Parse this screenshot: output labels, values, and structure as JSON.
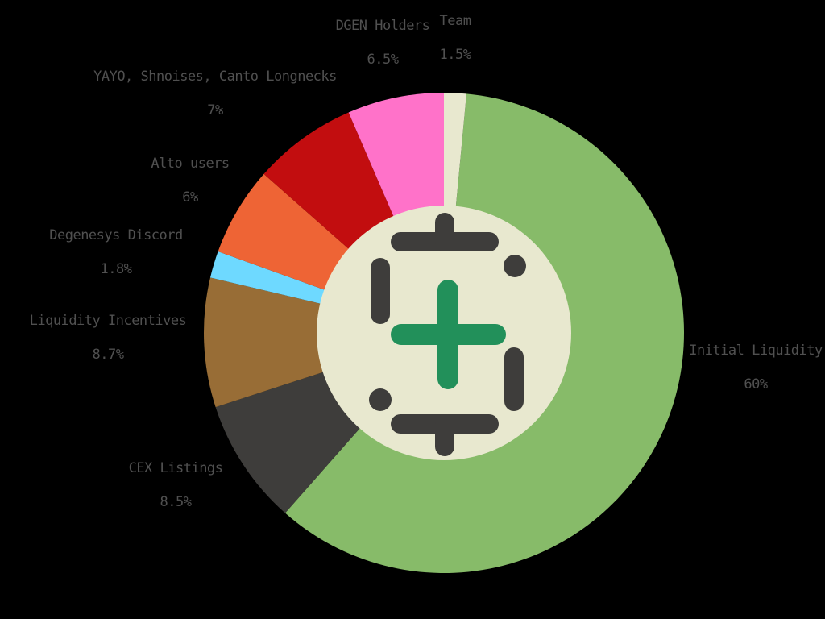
{
  "chart_data": {
    "type": "pie",
    "slices": [
      {
        "label": "Initial Liquidity",
        "value": 60,
        "value_label": "60%",
        "color": "#87BB69"
      },
      {
        "label": "CEX Listings",
        "value": 8.5,
        "value_label": "8.5%",
        "color": "#3E3D3B"
      },
      {
        "label": "Liquidity Incentives",
        "value": 8.7,
        "value_label": "8.7%",
        "color": "#986D36"
      },
      {
        "label": "Degenesys Discord",
        "value": 1.8,
        "value_label": "1.8%",
        "color": "#6ED9FF"
      },
      {
        "label": "Alto users",
        "value": 6,
        "value_label": "6%",
        "color": "#EE6435"
      },
      {
        "label": "YAYO, Shnoises, Canto Longnecks",
        "value": 7,
        "value_label": "7%",
        "color": "#C20D0F"
      },
      {
        "label": "DGEN Holders",
        "value": 6.5,
        "value_label": "6.5%",
        "color": "#FF72C9"
      },
      {
        "label": "Team",
        "value": 1.5,
        "value_label": "1.5%",
        "color": "#E8E8CF"
      }
    ],
    "title": "",
    "legend": "none",
    "center_logo": {
      "icon": "dollar-plus-logo-icon",
      "bg_color": "#E8E8CF",
      "plus_color": "#22905A",
      "stroke_color": "#3E3D3B"
    }
  }
}
